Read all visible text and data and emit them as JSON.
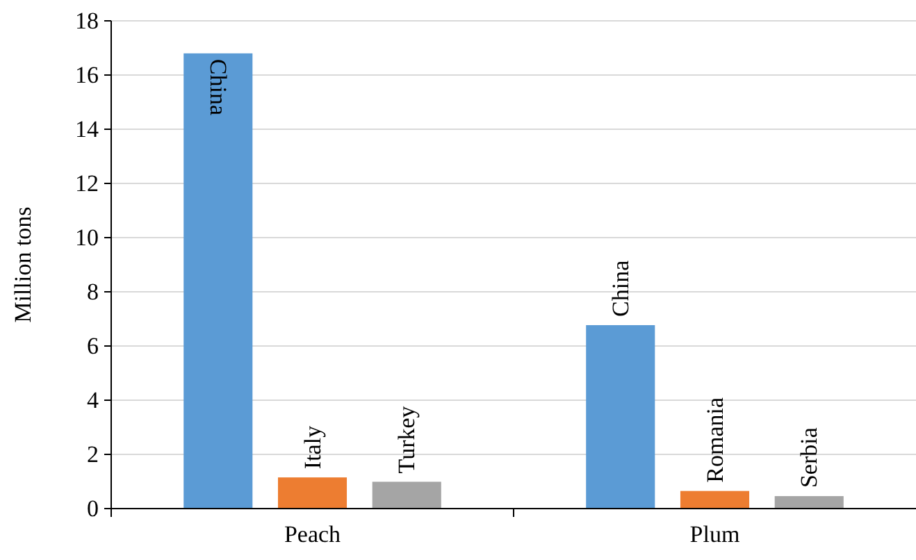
{
  "chart_data": {
    "type": "bar",
    "ylabel": "Million tons",
    "categories": [
      "Peach",
      "Plum"
    ],
    "series": [
      {
        "color": "#5b9bd5",
        "values": [
          16.8,
          6.77
        ]
      },
      {
        "color": "#ed7d31",
        "values": [
          1.15,
          0.65
        ]
      },
      {
        "color": "#a5a5a5",
        "values": [
          0.99,
          0.46
        ]
      }
    ],
    "annotations": [
      "China",
      "Italy",
      "Turkey",
      "China",
      "Romania",
      "Serbia"
    ],
    "ylim": [
      0,
      18
    ],
    "yticks": [
      0,
      2,
      4,
      6,
      8,
      10,
      12,
      14,
      16,
      18
    ],
    "grid": "y"
  }
}
